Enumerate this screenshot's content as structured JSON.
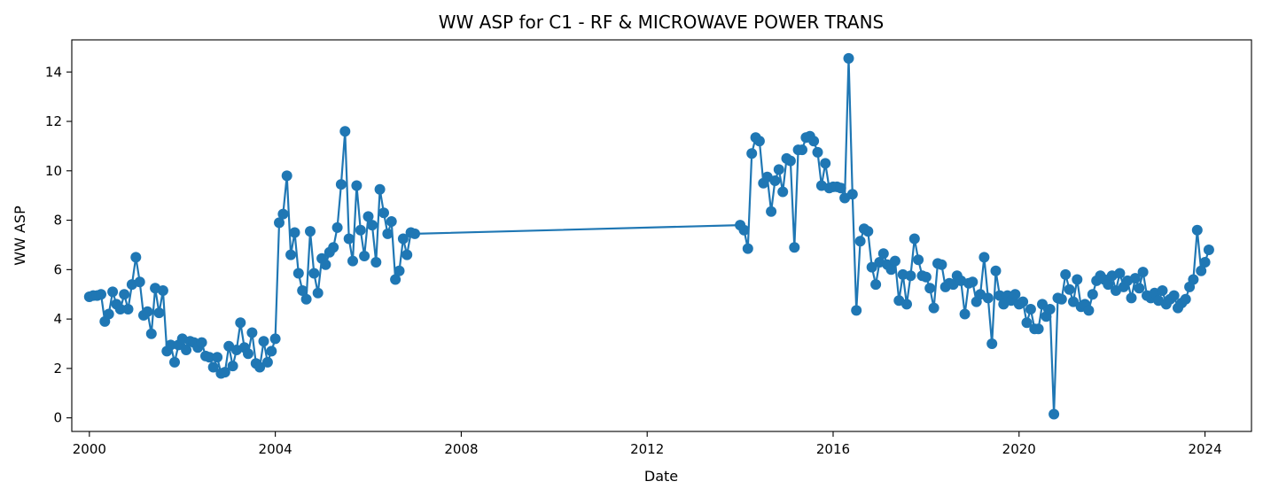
{
  "chart_data": {
    "type": "line",
    "title": "WW ASP for C1 - RF & MICROWAVE POWER TRANS",
    "xlabel": "Date",
    "ylabel": "WW ASP",
    "x_ticks": [
      "2000",
      "2004",
      "2008",
      "2012",
      "2016",
      "2020",
      "2024"
    ],
    "y_ticks": [
      "0",
      "2",
      "4",
      "6",
      "8",
      "10",
      "12",
      "14"
    ],
    "xlim": [
      "1999-08-15",
      "2025-01-01"
    ],
    "ylim": [
      -0.55,
      15.3
    ],
    "grid": false,
    "marker": "circle",
    "color": "#1f77b4",
    "series": [
      {
        "points": [
          [
            "2000-01-01",
            4.9
          ],
          [
            "2000-02-01",
            4.95
          ],
          [
            "2000-03-01",
            4.95
          ],
          [
            "2000-04-01",
            5.0
          ],
          [
            "2000-05-01",
            3.9
          ],
          [
            "2000-06-01",
            4.2
          ],
          [
            "2000-07-01",
            5.1
          ],
          [
            "2000-08-01",
            4.6
          ],
          [
            "2000-09-01",
            4.4
          ],
          [
            "2000-10-01",
            5.0
          ],
          [
            "2000-11-01",
            4.4
          ],
          [
            "2000-12-01",
            5.4
          ],
          [
            "2001-01-01",
            6.5
          ],
          [
            "2001-02-01",
            5.5
          ],
          [
            "2001-03-01",
            4.15
          ],
          [
            "2001-04-01",
            4.3
          ],
          [
            "2001-05-01",
            3.4
          ],
          [
            "2001-06-01",
            5.25
          ],
          [
            "2001-07-01",
            4.25
          ],
          [
            "2001-08-01",
            5.15
          ],
          [
            "2001-09-01",
            2.7
          ],
          [
            "2001-10-01",
            2.95
          ],
          [
            "2001-11-01",
            2.25
          ],
          [
            "2001-12-01",
            2.95
          ],
          [
            "2002-01-01",
            3.2
          ],
          [
            "2002-02-01",
            2.75
          ],
          [
            "2002-03-01",
            3.1
          ],
          [
            "2002-04-01",
            3.05
          ],
          [
            "2002-05-01",
            2.85
          ],
          [
            "2002-06-01",
            3.05
          ],
          [
            "2002-07-01",
            2.5
          ],
          [
            "2002-08-01",
            2.45
          ],
          [
            "2002-09-01",
            2.05
          ],
          [
            "2002-10-01",
            2.45
          ],
          [
            "2002-11-01",
            1.8
          ],
          [
            "2002-12-01",
            1.85
          ],
          [
            "2003-01-01",
            2.9
          ],
          [
            "2003-02-01",
            2.1
          ],
          [
            "2003-03-01",
            2.75
          ],
          [
            "2003-04-01",
            3.85
          ],
          [
            "2003-05-01",
            2.85
          ],
          [
            "2003-06-01",
            2.6
          ],
          [
            "2003-07-01",
            3.45
          ],
          [
            "2003-08-01",
            2.2
          ],
          [
            "2003-09-01",
            2.05
          ],
          [
            "2003-10-01",
            3.1
          ],
          [
            "2003-11-01",
            2.25
          ],
          [
            "2003-12-01",
            2.7
          ],
          [
            "2004-01-01",
            3.2
          ],
          [
            "2004-02-01",
            7.9
          ],
          [
            "2004-03-01",
            8.25
          ],
          [
            "2004-04-01",
            9.8
          ],
          [
            "2004-05-01",
            6.6
          ],
          [
            "2004-06-01",
            7.5
          ],
          [
            "2004-07-01",
            5.85
          ],
          [
            "2004-08-01",
            5.15
          ],
          [
            "2004-09-01",
            4.8
          ],
          [
            "2004-10-01",
            7.55
          ],
          [
            "2004-11-01",
            5.85
          ],
          [
            "2004-12-01",
            5.05
          ],
          [
            "2005-01-01",
            6.45
          ],
          [
            "2005-02-01",
            6.2
          ],
          [
            "2005-03-01",
            6.7
          ],
          [
            "2005-04-01",
            6.9
          ],
          [
            "2005-05-01",
            7.7
          ],
          [
            "2005-06-01",
            9.45
          ],
          [
            "2005-07-01",
            11.6
          ],
          [
            "2005-08-01",
            7.25
          ],
          [
            "2005-09-01",
            6.35
          ],
          [
            "2005-10-01",
            9.4
          ],
          [
            "2005-11-01",
            7.6
          ],
          [
            "2005-12-01",
            6.55
          ],
          [
            "2006-01-01",
            8.15
          ],
          [
            "2006-02-01",
            7.8
          ],
          [
            "2006-03-01",
            6.3
          ],
          [
            "2006-04-01",
            9.25
          ],
          [
            "2006-05-01",
            8.3
          ],
          [
            "2006-06-01",
            7.45
          ],
          [
            "2006-07-01",
            7.95
          ],
          [
            "2006-08-01",
            5.6
          ],
          [
            "2006-09-01",
            5.95
          ],
          [
            "2006-10-01",
            7.25
          ],
          [
            "2006-11-01",
            6.6
          ],
          [
            "2006-12-01",
            7.5
          ],
          [
            "2007-01-01",
            7.45
          ],
          [
            "2014-01-01",
            7.8
          ],
          [
            "2014-02-01",
            7.6
          ],
          [
            "2014-03-01",
            6.85
          ],
          [
            "2014-04-01",
            10.7
          ],
          [
            "2014-05-01",
            11.35
          ],
          [
            "2014-06-01",
            11.2
          ],
          [
            "2014-07-01",
            9.5
          ],
          [
            "2014-08-01",
            9.75
          ],
          [
            "2014-09-01",
            8.35
          ],
          [
            "2014-10-01",
            9.6
          ],
          [
            "2014-11-01",
            10.05
          ],
          [
            "2014-12-01",
            9.15
          ],
          [
            "2015-01-01",
            10.5
          ],
          [
            "2015-02-01",
            10.4
          ],
          [
            "2015-03-01",
            6.9
          ],
          [
            "2015-04-01",
            10.85
          ],
          [
            "2015-05-01",
            10.85
          ],
          [
            "2015-06-01",
            11.35
          ],
          [
            "2015-07-01",
            11.4
          ],
          [
            "2015-08-01",
            11.2
          ],
          [
            "2015-09-01",
            10.75
          ],
          [
            "2015-10-01",
            9.4
          ],
          [
            "2015-11-01",
            10.3
          ],
          [
            "2015-12-01",
            9.3
          ],
          [
            "2016-01-01",
            9.35
          ],
          [
            "2016-02-01",
            9.35
          ],
          [
            "2016-03-01",
            9.3
          ],
          [
            "2016-04-01",
            8.9
          ],
          [
            "2016-05-01",
            14.55
          ],
          [
            "2016-06-01",
            9.05
          ],
          [
            "2016-07-01",
            4.35
          ],
          [
            "2016-08-01",
            7.15
          ],
          [
            "2016-09-01",
            7.65
          ],
          [
            "2016-10-01",
            7.55
          ],
          [
            "2016-11-01",
            6.1
          ],
          [
            "2016-12-01",
            5.4
          ],
          [
            "2017-01-01",
            6.3
          ],
          [
            "2017-02-01",
            6.65
          ],
          [
            "2017-03-01",
            6.2
          ],
          [
            "2017-04-01",
            6.0
          ],
          [
            "2017-05-01",
            6.35
          ],
          [
            "2017-06-01",
            4.75
          ],
          [
            "2017-07-01",
            5.8
          ],
          [
            "2017-08-01",
            4.6
          ],
          [
            "2017-09-01",
            5.75
          ],
          [
            "2017-10-01",
            7.25
          ],
          [
            "2017-11-01",
            6.4
          ],
          [
            "2017-12-01",
            5.75
          ],
          [
            "2018-01-01",
            5.7
          ],
          [
            "2018-02-01",
            5.25
          ],
          [
            "2018-03-01",
            4.45
          ],
          [
            "2018-04-01",
            6.25
          ],
          [
            "2018-05-01",
            6.2
          ],
          [
            "2018-06-01",
            5.3
          ],
          [
            "2018-07-01",
            5.45
          ],
          [
            "2018-08-01",
            5.4
          ],
          [
            "2018-09-01",
            5.75
          ],
          [
            "2018-10-01",
            5.55
          ],
          [
            "2018-11-01",
            4.2
          ],
          [
            "2018-12-01",
            5.45
          ],
          [
            "2019-01-01",
            5.5
          ],
          [
            "2019-02-01",
            4.7
          ],
          [
            "2019-03-01",
            5.0
          ],
          [
            "2019-04-01",
            6.5
          ],
          [
            "2019-05-01",
            4.85
          ],
          [
            "2019-06-01",
            3.0
          ],
          [
            "2019-07-01",
            5.95
          ],
          [
            "2019-08-01",
            4.95
          ],
          [
            "2019-09-01",
            4.6
          ],
          [
            "2019-10-01",
            4.95
          ],
          [
            "2019-11-01",
            4.75
          ],
          [
            "2019-12-01",
            5.0
          ],
          [
            "2020-01-01",
            4.6
          ],
          [
            "2020-02-01",
            4.7
          ],
          [
            "2020-03-01",
            3.85
          ],
          [
            "2020-04-01",
            4.4
          ],
          [
            "2020-05-01",
            3.6
          ],
          [
            "2020-06-01",
            3.6
          ],
          [
            "2020-07-01",
            4.6
          ],
          [
            "2020-08-01",
            4.1
          ],
          [
            "2020-09-01",
            4.4
          ],
          [
            "2020-10-01",
            0.15
          ],
          [
            "2020-11-01",
            4.85
          ],
          [
            "2020-12-01",
            4.8
          ],
          [
            "2021-01-01",
            5.8
          ],
          [
            "2021-02-01",
            5.2
          ],
          [
            "2021-03-01",
            4.7
          ],
          [
            "2021-04-01",
            5.6
          ],
          [
            "2021-05-01",
            4.5
          ],
          [
            "2021-06-01",
            4.6
          ],
          [
            "2021-07-01",
            4.35
          ],
          [
            "2021-08-01",
            5.0
          ],
          [
            "2021-09-01",
            5.55
          ],
          [
            "2021-10-01",
            5.75
          ],
          [
            "2021-11-01",
            5.6
          ],
          [
            "2021-12-01",
            5.4
          ],
          [
            "2022-01-01",
            5.75
          ],
          [
            "2022-02-01",
            5.15
          ],
          [
            "2022-03-01",
            5.85
          ],
          [
            "2022-04-01",
            5.3
          ],
          [
            "2022-05-01",
            5.55
          ],
          [
            "2022-06-01",
            4.85
          ],
          [
            "2022-07-01",
            5.65
          ],
          [
            "2022-08-01",
            5.25
          ],
          [
            "2022-09-01",
            5.9
          ],
          [
            "2022-10-01",
            4.95
          ],
          [
            "2022-11-01",
            4.85
          ],
          [
            "2022-12-01",
            5.05
          ],
          [
            "2023-01-01",
            4.75
          ],
          [
            "2023-02-01",
            5.15
          ],
          [
            "2023-03-01",
            4.6
          ],
          [
            "2023-04-01",
            4.8
          ],
          [
            "2023-05-01",
            4.95
          ],
          [
            "2023-06-01",
            4.45
          ],
          [
            "2023-07-01",
            4.65
          ],
          [
            "2023-08-01",
            4.8
          ],
          [
            "2023-09-01",
            5.3
          ],
          [
            "2023-10-01",
            5.6
          ],
          [
            "2023-11-01",
            7.6
          ],
          [
            "2023-12-01",
            5.95
          ],
          [
            "2024-01-01",
            6.3
          ],
          [
            "2024-02-01",
            6.8
          ]
        ]
      }
    ]
  }
}
